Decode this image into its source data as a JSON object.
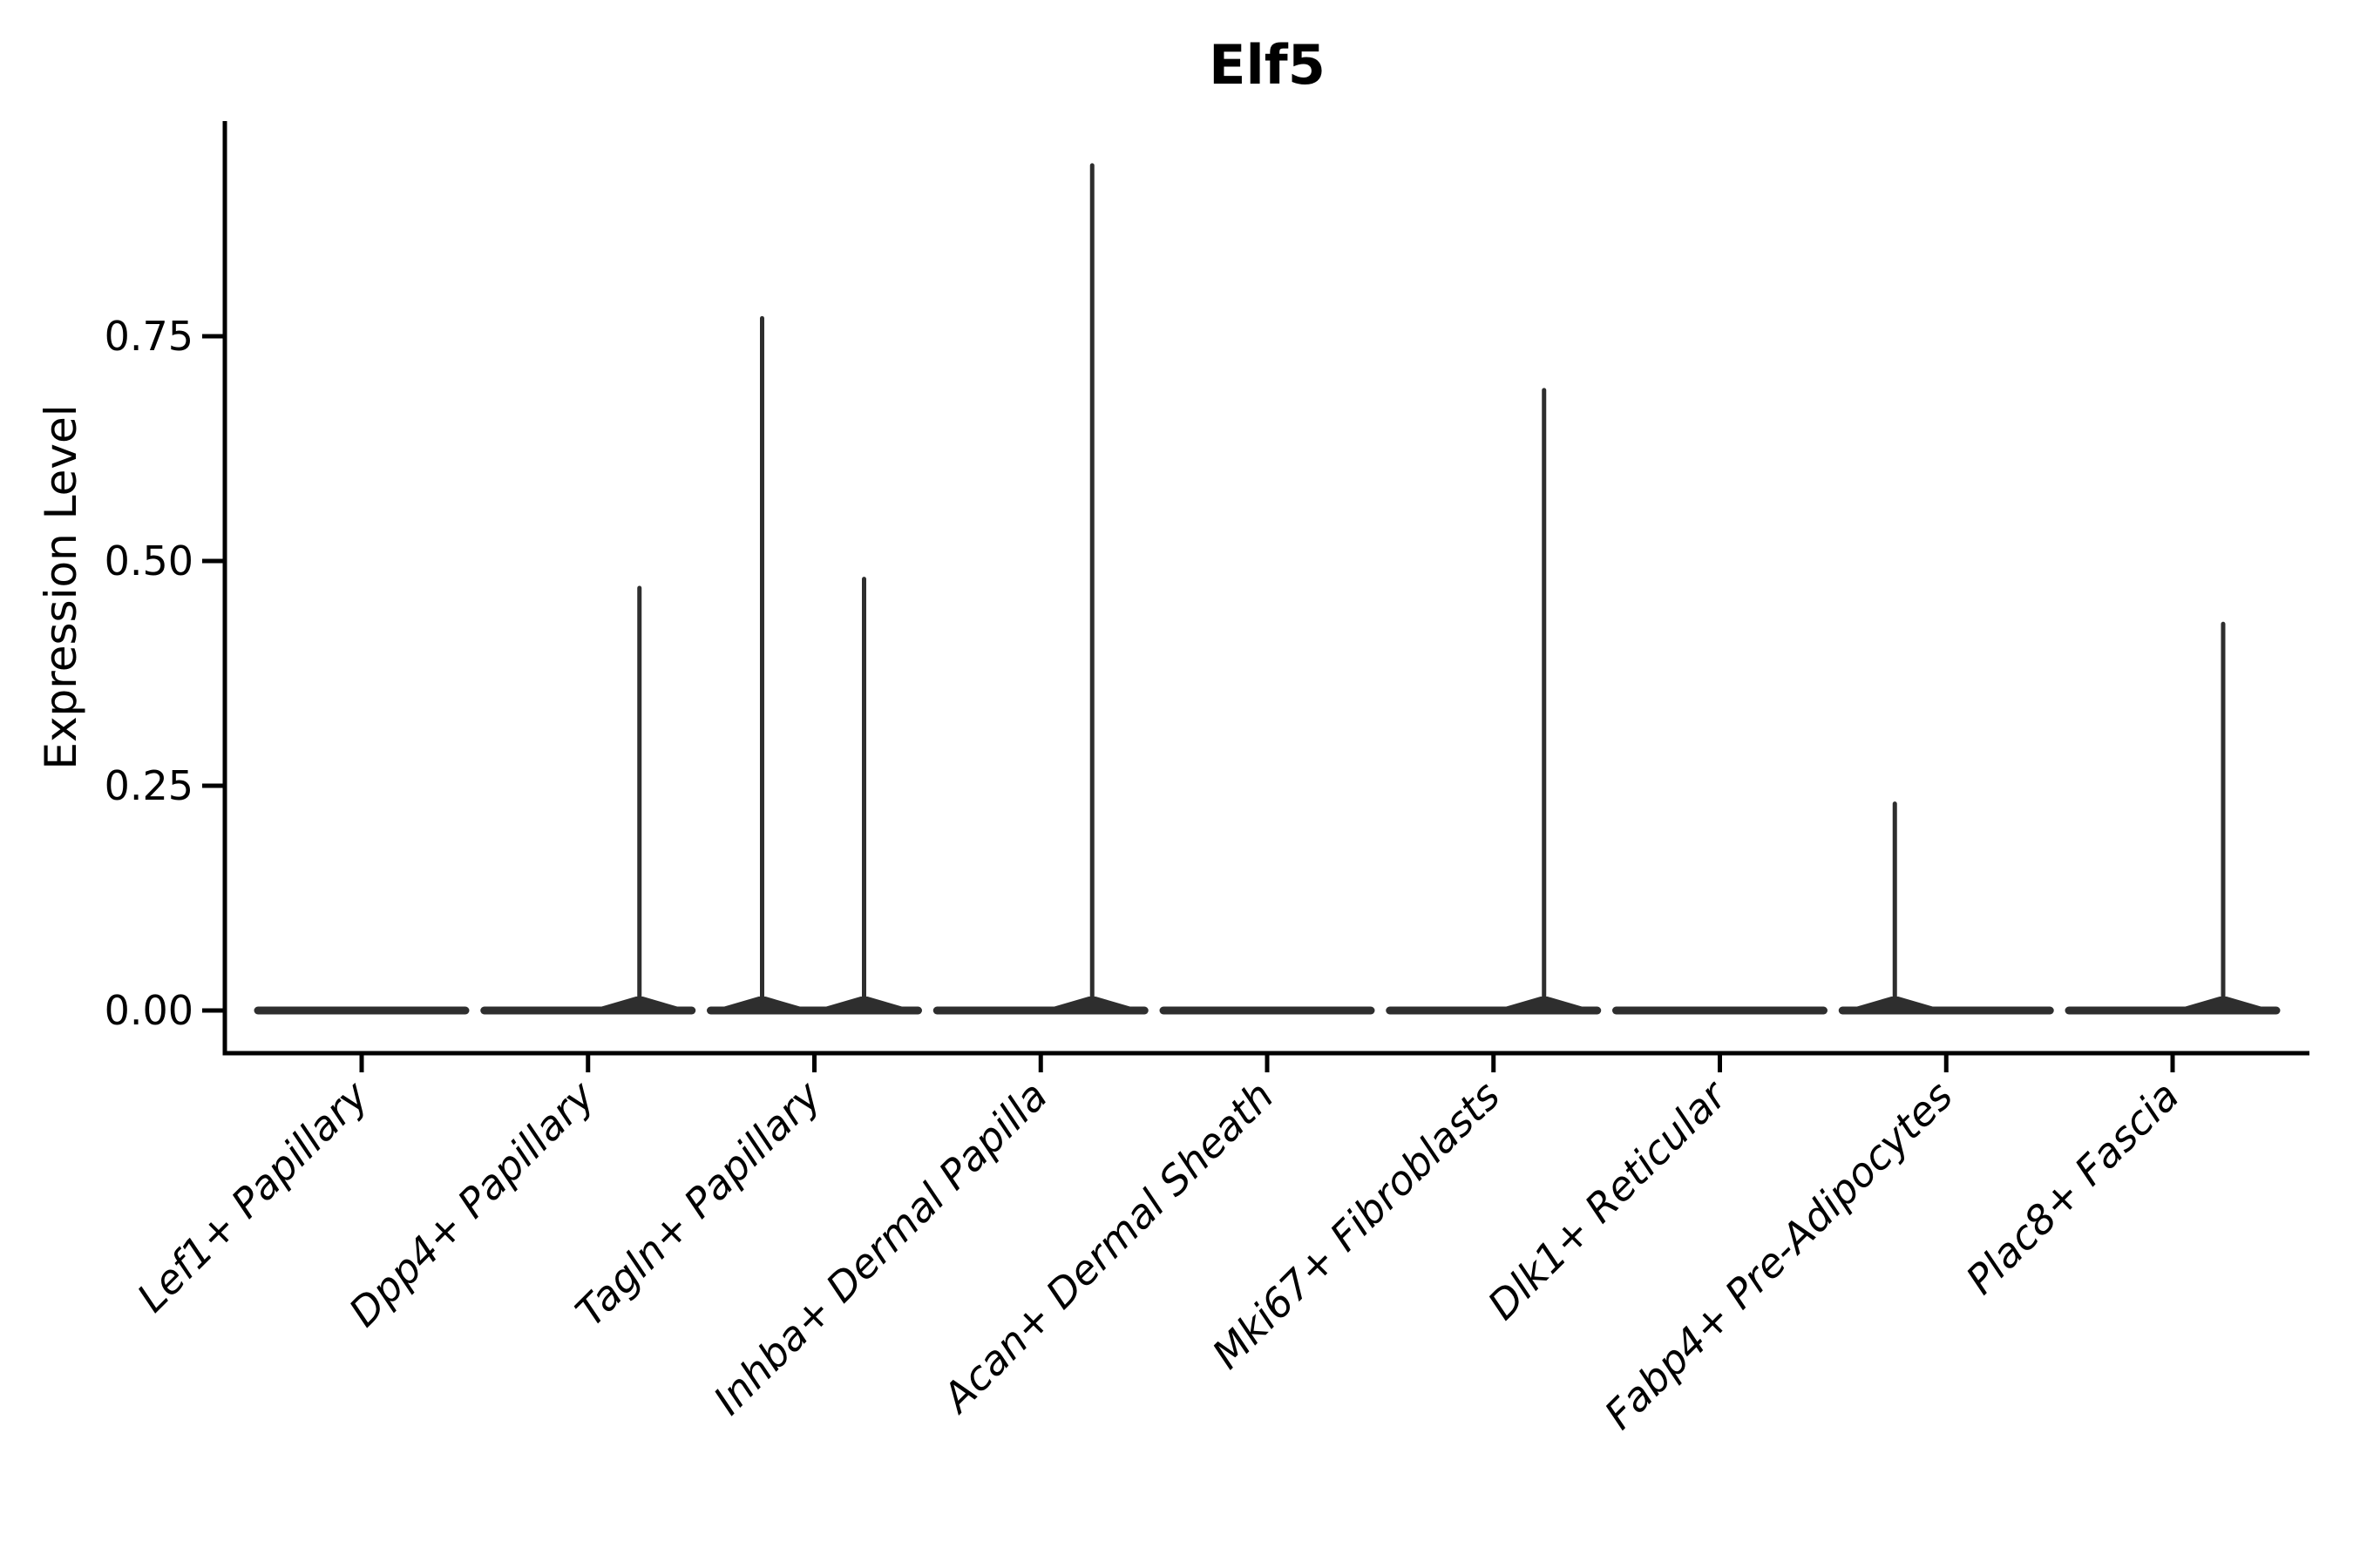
{
  "title": "Elf5",
  "y_axis": {
    "label": "Expression Level",
    "tick_labels": [
      "0.00",
      "0.25",
      "0.50",
      "0.75"
    ],
    "tick_values": [
      0,
      0.25,
      0.5,
      0.75
    ],
    "range": [
      0,
      1.0
    ]
  },
  "colors": {
    "axis": "#000000",
    "violin": "#2e2e2e",
    "text": "#000000",
    "background": "#ffffff"
  },
  "chart_data": {
    "type": "violin",
    "title": "Elf5",
    "xlabel": "",
    "ylabel": "Expression Level",
    "ylim": [
      0,
      1.0
    ],
    "yticks": [
      0,
      0.25,
      0.5,
      0.75
    ],
    "ytick_labels": [
      "0.00",
      "0.25",
      "0.50",
      "0.75"
    ],
    "grid": false,
    "legend": "none",
    "x_label_rotation_deg": 45,
    "x_label_style": "italic",
    "categories": [
      "Lef1+ Papillary",
      "Dpp4+ Papillary",
      "Tagln+ Papillary",
      "Inhba+ Dermal Papilla",
      "Acan+ Dermal Sheath",
      "Mki67+ Fibroblasts",
      "Dlk1+ Reticular",
      "Fabp4+ Pre-Adipocytes",
      "Plac8+ Fascia"
    ],
    "max_expression_per_category": [
      0,
      0.47,
      0.77,
      0.94,
      0,
      0.69,
      0,
      0.23,
      0.43
    ],
    "series": [
      {
        "name": "Lef1+ Papillary",
        "baseline_value": 0,
        "spikes": []
      },
      {
        "name": "Dpp4+ Papillary",
        "baseline_value": 0,
        "spikes": [
          {
            "dx": 59,
            "value": 0.47
          }
        ]
      },
      {
        "name": "Tagln+ Papillary",
        "baseline_value": 0,
        "spikes": [
          {
            "dx": -60,
            "value": 0.77
          },
          {
            "dx": 57,
            "value": 0.48
          }
        ]
      },
      {
        "name": "Inhba+ Dermal Papilla",
        "baseline_value": 0,
        "spikes": [
          {
            "dx": 59,
            "value": 0.94
          }
        ]
      },
      {
        "name": "Acan+ Dermal Sheath",
        "baseline_value": 0,
        "spikes": []
      },
      {
        "name": "Mki67+ Fibroblasts",
        "baseline_value": 0,
        "spikes": [
          {
            "dx": 58,
            "value": 0.69
          }
        ]
      },
      {
        "name": "Dlk1+ Reticular",
        "baseline_value": 0,
        "spikes": []
      },
      {
        "name": "Fabp4+ Pre-Adipocytes",
        "baseline_value": 0,
        "spikes": [
          {
            "dx": -59,
            "value": 0.23
          }
        ]
      },
      {
        "name": "Plac8+ Fascia",
        "baseline_value": 0,
        "spikes": [
          {
            "dx": 58,
            "value": 0.43
          }
        ]
      }
    ]
  }
}
